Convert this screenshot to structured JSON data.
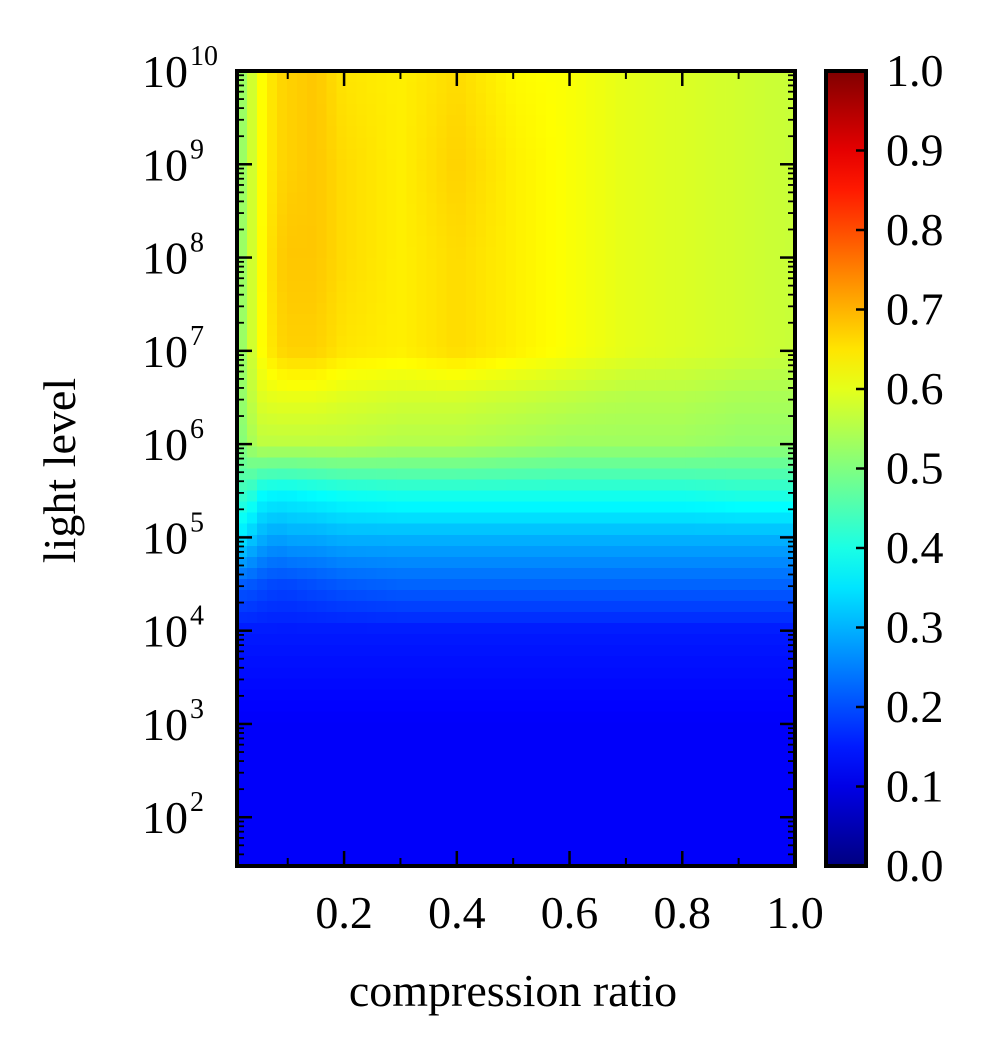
{
  "chart_data": {
    "type": "heatmap",
    "title": "",
    "xlabel": "compression ratio",
    "ylabel": "light level",
    "x_scale": "linear",
    "y_scale": "log",
    "xlim": [
      0.01,
      1.0
    ],
    "ylim": [
      30,
      10000000000
    ],
    "x_ticks": [
      {
        "value": 0.2,
        "label": "0.2"
      },
      {
        "value": 0.4,
        "label": "0.4"
      },
      {
        "value": 0.6,
        "label": "0.6"
      },
      {
        "value": 0.8,
        "label": "0.8"
      },
      {
        "value": 1.0,
        "label": "1.0"
      }
    ],
    "y_ticks": [
      {
        "value": 100,
        "base": "10",
        "exp": "2"
      },
      {
        "value": 1000,
        "base": "10",
        "exp": "3"
      },
      {
        "value": 10000,
        "base": "10",
        "exp": "4"
      },
      {
        "value": 100000,
        "base": "10",
        "exp": "5"
      },
      {
        "value": 1000000,
        "base": "10",
        "exp": "6"
      },
      {
        "value": 10000000,
        "base": "10",
        "exp": "7"
      },
      {
        "value": 100000000,
        "base": "10",
        "exp": "8"
      },
      {
        "value": 1000000000,
        "base": "10",
        "exp": "9"
      },
      {
        "value": 10000000000,
        "base": "10",
        "exp": "10"
      }
    ],
    "x": [
      0.01,
      0.03,
      0.05,
      0.08,
      0.1,
      0.15,
      0.2,
      0.3,
      0.4,
      0.5,
      0.6,
      0.7,
      0.8,
      0.9,
      1.0
    ],
    "y": [
      30,
      100,
      1000,
      10000,
      30000,
      100000,
      300000,
      1000000,
      3000000,
      10000000,
      100000000,
      1000000000,
      10000000000
    ],
    "z": [
      [
        0.12,
        0.12,
        0.12,
        0.12,
        0.12,
        0.12,
        0.12,
        0.12,
        0.12,
        0.12,
        0.12,
        0.12,
        0.12,
        0.12,
        0.12
      ],
      [
        0.12,
        0.12,
        0.12,
        0.12,
        0.12,
        0.12,
        0.12,
        0.12,
        0.12,
        0.12,
        0.12,
        0.12,
        0.12,
        0.12,
        0.12
      ],
      [
        0.12,
        0.12,
        0.12,
        0.12,
        0.12,
        0.12,
        0.12,
        0.12,
        0.12,
        0.12,
        0.12,
        0.12,
        0.12,
        0.12,
        0.12
      ],
      [
        0.15,
        0.15,
        0.15,
        0.15,
        0.15,
        0.15,
        0.15,
        0.15,
        0.15,
        0.15,
        0.15,
        0.15,
        0.15,
        0.15,
        0.15
      ],
      [
        0.21,
        0.21,
        0.2,
        0.19,
        0.19,
        0.2,
        0.21,
        0.22,
        0.22,
        0.22,
        0.22,
        0.22,
        0.22,
        0.22,
        0.22
      ],
      [
        0.36,
        0.33,
        0.3,
        0.28,
        0.29,
        0.29,
        0.3,
        0.3,
        0.3,
        0.3,
        0.3,
        0.3,
        0.3,
        0.3,
        0.3
      ],
      [
        0.43,
        0.43,
        0.38,
        0.37,
        0.37,
        0.38,
        0.39,
        0.4,
        0.4,
        0.4,
        0.4,
        0.4,
        0.4,
        0.41,
        0.41
      ],
      [
        0.49,
        0.53,
        0.56,
        0.56,
        0.56,
        0.56,
        0.56,
        0.55,
        0.55,
        0.54,
        0.53,
        0.53,
        0.53,
        0.52,
        0.52
      ],
      [
        0.5,
        0.55,
        0.59,
        0.6,
        0.6,
        0.6,
        0.59,
        0.58,
        0.58,
        0.57,
        0.56,
        0.55,
        0.55,
        0.54,
        0.54
      ],
      [
        0.5,
        0.56,
        0.62,
        0.66,
        0.67,
        0.67,
        0.65,
        0.64,
        0.66,
        0.64,
        0.62,
        0.6,
        0.59,
        0.58,
        0.57
      ],
      [
        0.5,
        0.56,
        0.62,
        0.67,
        0.68,
        0.68,
        0.66,
        0.64,
        0.66,
        0.64,
        0.62,
        0.6,
        0.59,
        0.58,
        0.57
      ],
      [
        0.5,
        0.56,
        0.62,
        0.66,
        0.67,
        0.68,
        0.66,
        0.64,
        0.67,
        0.64,
        0.62,
        0.6,
        0.59,
        0.58,
        0.57
      ],
      [
        0.5,
        0.56,
        0.62,
        0.66,
        0.67,
        0.68,
        0.65,
        0.64,
        0.66,
        0.63,
        0.62,
        0.6,
        0.59,
        0.58,
        0.57
      ]
    ],
    "colorbar": {
      "range": [
        0.0,
        1.0
      ],
      "colormap": "jet",
      "ticks": [
        "0.0",
        "0.1",
        "0.2",
        "0.3",
        "0.4",
        "0.5",
        "0.6",
        "0.7",
        "0.8",
        "0.9",
        "1.0"
      ]
    },
    "grid": false
  }
}
